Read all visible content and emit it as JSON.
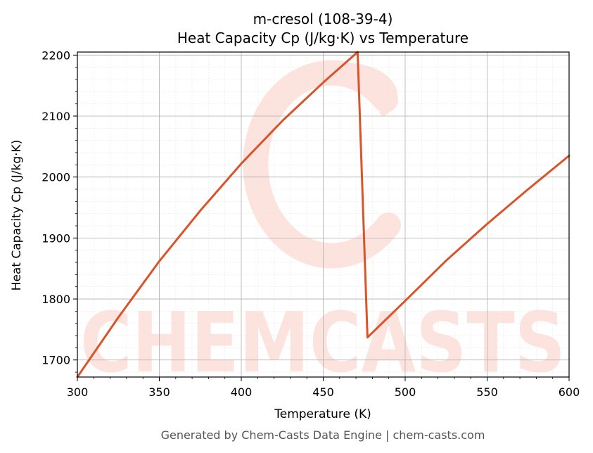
{
  "chart_data": {
    "type": "line",
    "title": "m-cresol (108-39-4)",
    "subtitle": "Heat Capacity Cp (J/kg·K) vs Temperature",
    "xlabel": "Temperature (K)",
    "ylabel": "Heat Capacity Cp (J/kg·K)",
    "xlim": [
      300,
      600
    ],
    "ylim": [
      1672,
      2205
    ],
    "xticks": [
      300,
      350,
      400,
      450,
      500,
      550,
      600
    ],
    "yticks": [
      1700,
      1800,
      1900,
      2000,
      2100,
      2200
    ],
    "grid": true,
    "series": [
      {
        "color": "#d9542a",
        "x": [
          300,
          325,
          350,
          375,
          400,
          425,
          450,
          471,
          477,
          500,
          525,
          550,
          575,
          600
        ],
        "y": [
          1672,
          1770,
          1862,
          1945,
          2022,
          2092,
          2155,
          2205,
          1737,
          1797,
          1863,
          1923,
          1980,
          2035
        ]
      }
    ]
  },
  "watermark": {
    "text": "CHEMCASTS",
    "color": "#fde3de"
  },
  "footer": "Generated by Chem-Casts Data Engine | chem-casts.com"
}
